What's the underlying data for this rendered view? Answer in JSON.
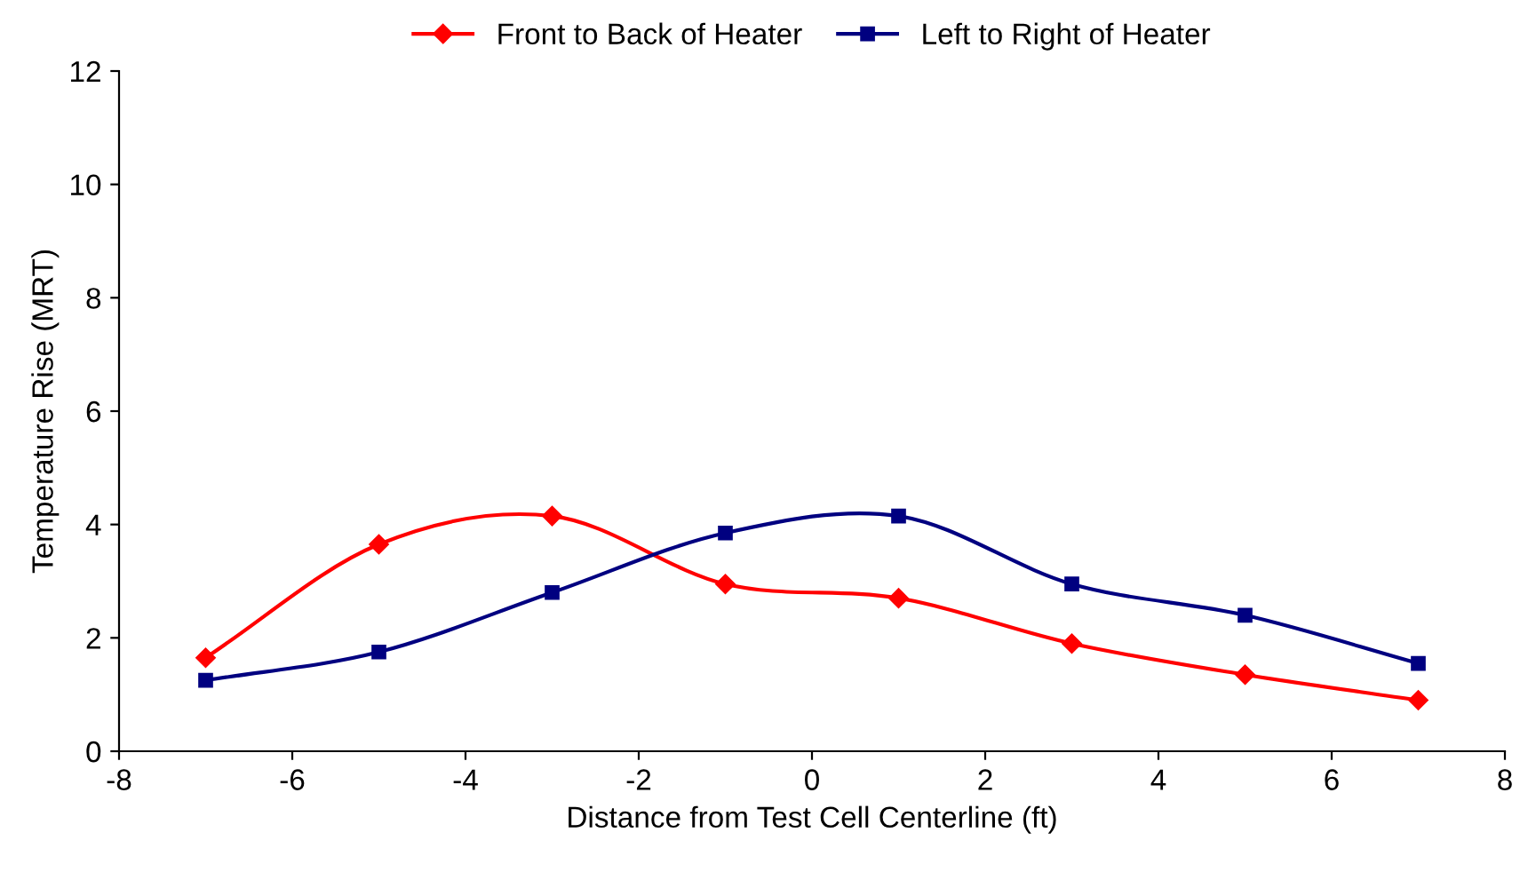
{
  "chart_data": {
    "type": "line",
    "xlabel": "Distance from Test Cell Centerline (ft)",
    "ylabel": "Temperature Rise (MRT)",
    "x": [
      -7,
      -5,
      -3,
      -1,
      1,
      3,
      5,
      7
    ],
    "series": [
      {
        "name": "Front to Back of Heater",
        "color": "#ff0000",
        "marker": "diamond",
        "values": [
          1.65,
          3.65,
          4.15,
          2.95,
          2.7,
          1.9,
          1.35,
          0.9
        ]
      },
      {
        "name": "Left to Right of Heater",
        "color": "#000080",
        "marker": "square",
        "values": [
          1.25,
          1.75,
          2.8,
          3.85,
          4.15,
          2.95,
          2.4,
          1.55
        ]
      }
    ],
    "xlim": [
      -8,
      8
    ],
    "xticks": [
      -8,
      -6,
      -4,
      -2,
      0,
      2,
      4,
      6,
      8
    ],
    "ylim": [
      0,
      12
    ],
    "yticks": [
      0,
      2,
      4,
      6,
      8,
      10,
      12
    ],
    "grid": false,
    "legend": "top",
    "line_style": "solid"
  }
}
